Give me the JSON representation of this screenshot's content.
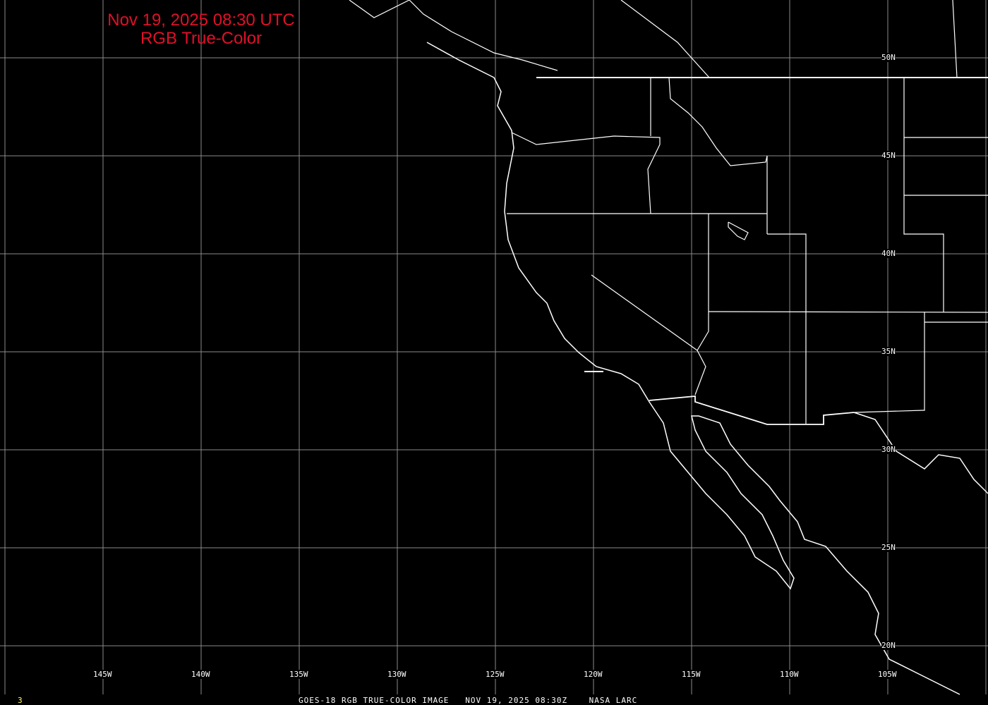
{
  "title": {
    "line1": "Nov 19, 2025 08:30 UTC",
    "line2": "RGB True-Color"
  },
  "footer": {
    "caption": "GOES-18 RGB TRUE-COLOR IMAGE   NOV 19, 2025 08:30Z    NASA LARC",
    "frame_number": "3"
  },
  "longitude_labels": [
    "145W",
    "140W",
    "135W",
    "130W",
    "125W",
    "120W",
    "115W",
    "110W",
    "105W"
  ],
  "latitude_labels": [
    "50N",
    "45N",
    "40N",
    "35N",
    "30N",
    "25N",
    "20N"
  ],
  "colors": {
    "background": "#000000",
    "title": "#e0102a",
    "grid": "#8a8a8a",
    "boundaries": "#ffffff",
    "frame_number": "#ffff66"
  }
}
